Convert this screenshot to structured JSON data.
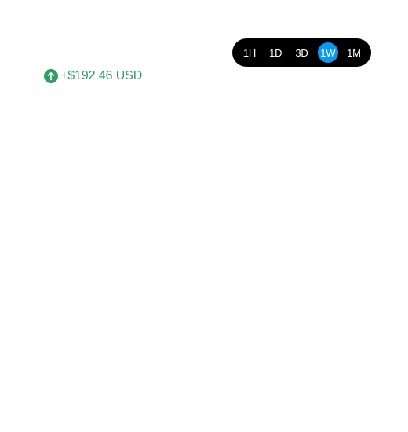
{
  "time_range": {
    "options": [
      "1H",
      "1D",
      "3D",
      "1W",
      "1M"
    ],
    "selected": "1W",
    "accent_color": "#0a9af2"
  },
  "change": {
    "text": "+$192.46 USD",
    "direction": "up",
    "icon": "arrow-up-icon",
    "color": "#2e9e63"
  }
}
